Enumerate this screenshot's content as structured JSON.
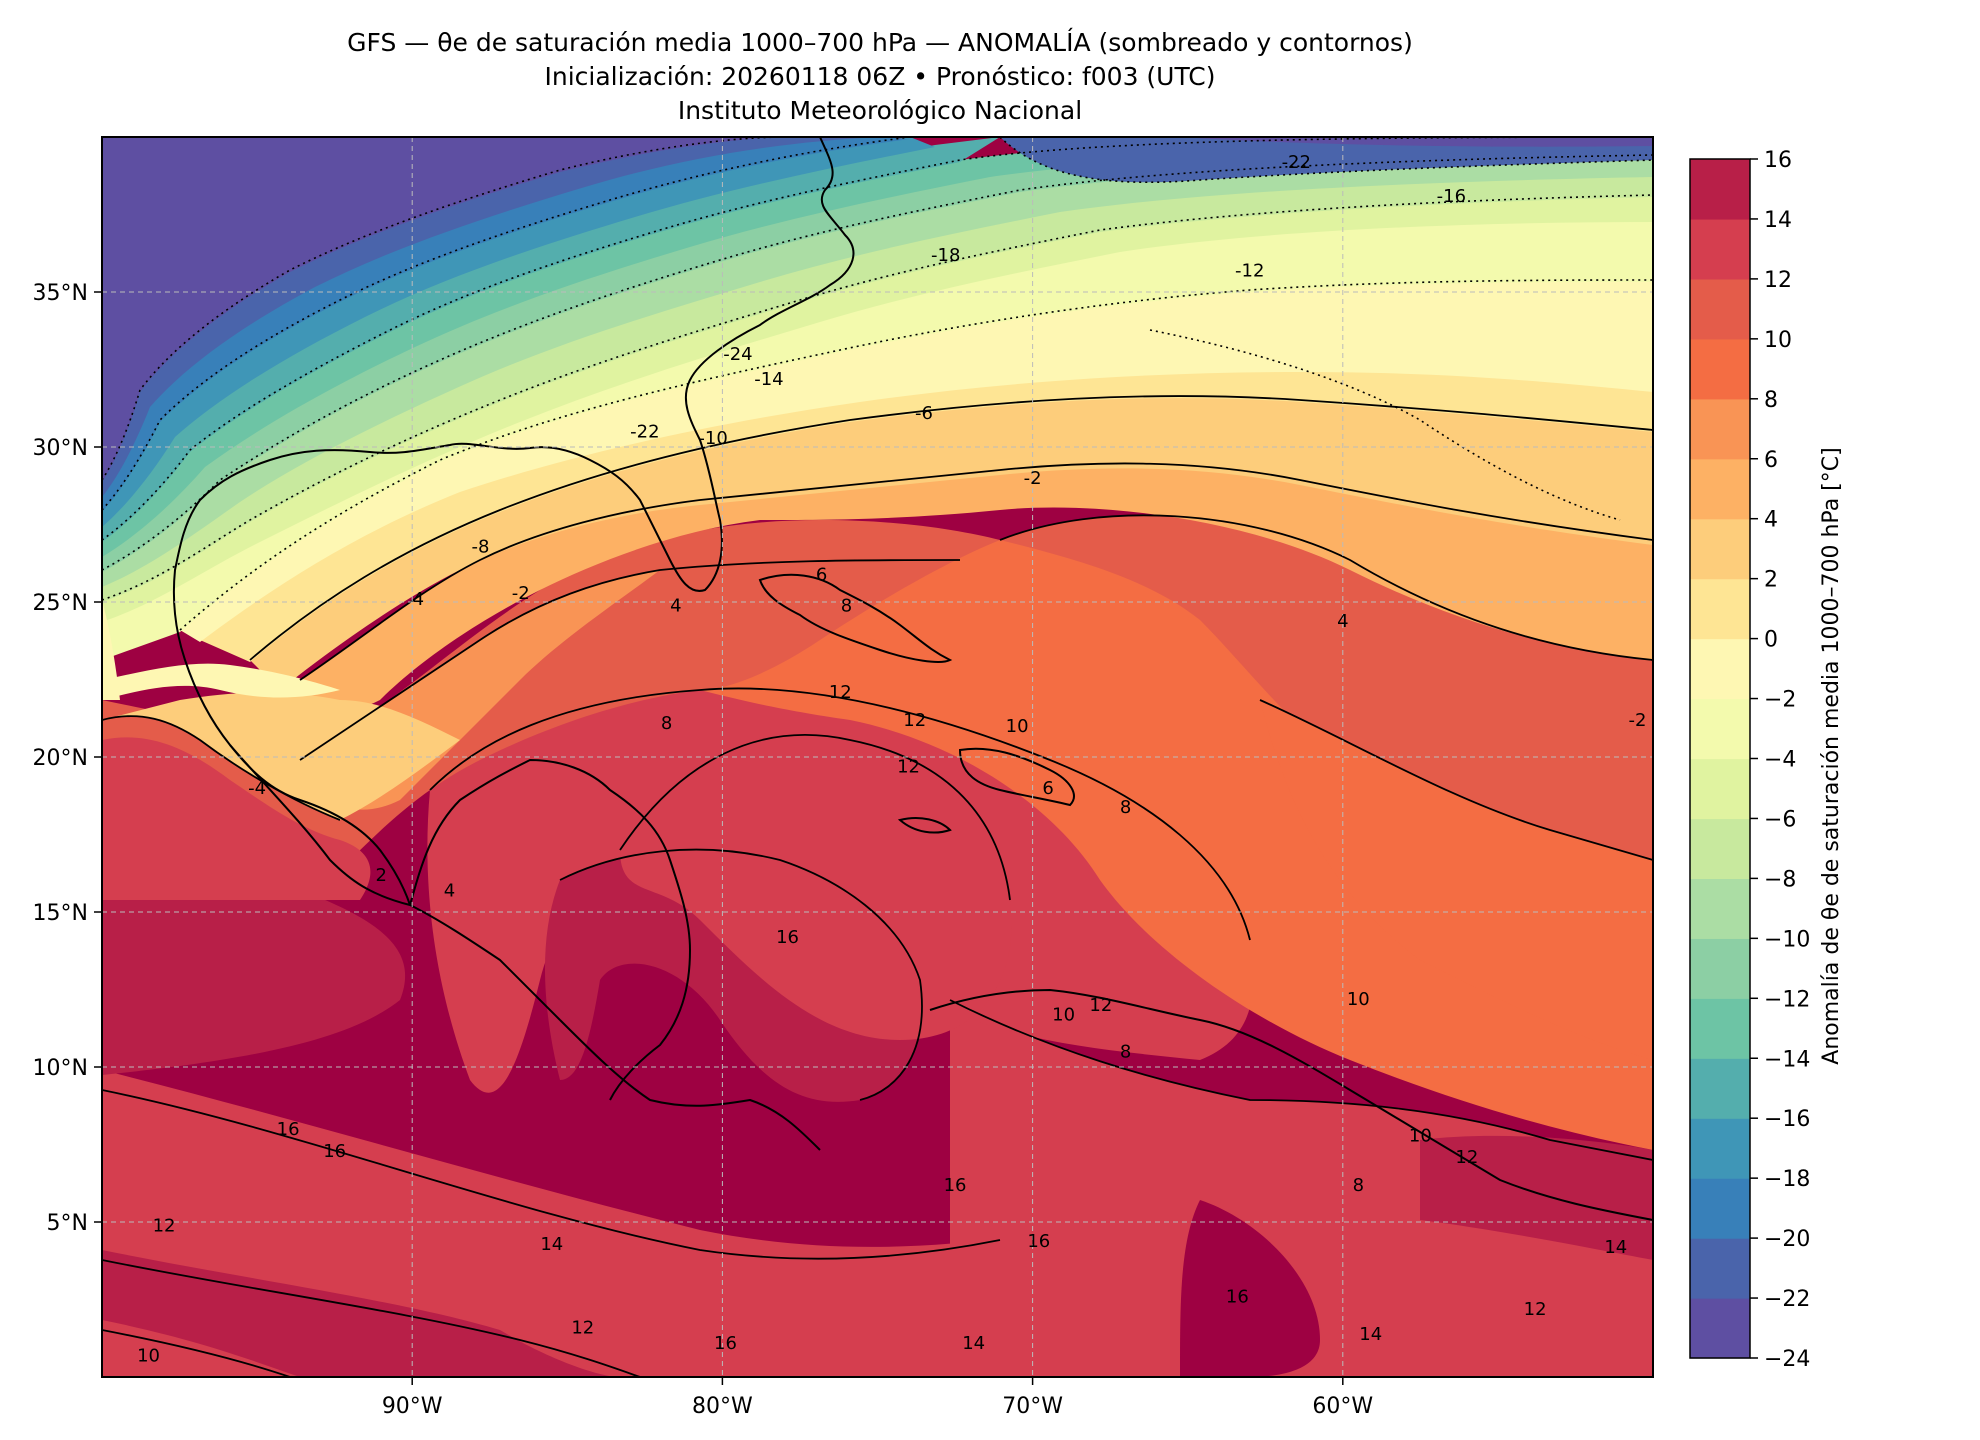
{
  "title": {
    "line1": "GFS — θe de saturación media 1000–700 hPa — ANOMALÍA (sombreado y contornos)",
    "line2": "Inicialización: 20260118 06Z   •   Pronóstico: f003 (UTC)",
    "line3": "Instituto Meteorológico Nacional"
  },
  "chart_data": {
    "type": "heatmap",
    "x_tick_labels": [
      "90°W",
      "80°W",
      "70°W",
      "60°W"
    ],
    "x_tick_values": [
      -90,
      -80,
      -70,
      -60
    ],
    "y_tick_labels": [
      "35°N",
      "30°N",
      "25°N",
      "20°N",
      "15°N",
      "10°N",
      "5°N"
    ],
    "y_tick_values": [
      35,
      30,
      25,
      20,
      15,
      10,
      5
    ],
    "xlim": [
      -100,
      -50
    ],
    "ylim": [
      0,
      40
    ],
    "grid": true,
    "colorbar": {
      "label": "Anomalía de θe de saturación media 1000–700 hPa [°C]",
      "ticks": [
        "16",
        "14",
        "12",
        "10",
        "8",
        "6",
        "4",
        "2",
        "0",
        "−2",
        "−4",
        "−6",
        "−8",
        "−10",
        "−12",
        "−14",
        "−16",
        "−18",
        "−20",
        "−22",
        "−24"
      ],
      "range": [
        -24,
        16
      ],
      "colors": [
        "#5e4fa2",
        "#4a64ab",
        "#3880b9",
        "#3f96b7",
        "#54aead",
        "#6dc4a5",
        "#8ccfa4",
        "#abdda4",
        "#c8e99e",
        "#e0f3a0",
        "#f3faad",
        "#fef7b3",
        "#fee594",
        "#fdcd7b",
        "#fdb164",
        "#f99455",
        "#f46d43",
        "#e45c4a",
        "#d53e4f",
        "#b81f48",
        "#9e0142"
      ]
    },
    "contour_labels": [
      {
        "text": "-22",
        "lon": -61.5,
        "lat": 39.0
      },
      {
        "text": "-16",
        "lon": -56.5,
        "lat": 37.9
      },
      {
        "text": "-18",
        "lon": -72.8,
        "lat": 36.0
      },
      {
        "text": "-12",
        "lon": -63.0,
        "lat": 35.5
      },
      {
        "text": "-24",
        "lon": -79.5,
        "lat": 32.8
      },
      {
        "text": "-14",
        "lon": -78.5,
        "lat": 32.0
      },
      {
        "text": "-6",
        "lon": -73.5,
        "lat": 30.9
      },
      {
        "text": "-10",
        "lon": -80.3,
        "lat": 30.1
      },
      {
        "text": "-22",
        "lon": -82.5,
        "lat": 30.3
      },
      {
        "text": "-2",
        "lon": -70.0,
        "lat": 28.8
      },
      {
        "text": "-8",
        "lon": -87.8,
        "lat": 26.6
      },
      {
        "text": "4",
        "lon": -89.8,
        "lat": 24.9
      },
      {
        "text": "-2",
        "lon": -86.5,
        "lat": 25.1
      },
      {
        "text": "4",
        "lon": -81.5,
        "lat": 24.7
      },
      {
        "text": "6",
        "lon": -76.8,
        "lat": 25.7
      },
      {
        "text": "8",
        "lon": -76.0,
        "lat": 24.7
      },
      {
        "text": "4",
        "lon": -60.0,
        "lat": 24.2
      },
      {
        "text": "12",
        "lon": -76.2,
        "lat": 21.9
      },
      {
        "text": "12",
        "lon": -73.8,
        "lat": 21.0
      },
      {
        "text": "8",
        "lon": -81.8,
        "lat": 20.9
      },
      {
        "text": "10",
        "lon": -70.5,
        "lat": 20.8
      },
      {
        "text": "-2",
        "lon": -50.5,
        "lat": 21.0
      },
      {
        "text": "12",
        "lon": -74.0,
        "lat": 19.5
      },
      {
        "text": "6",
        "lon": -69.5,
        "lat": 18.8
      },
      {
        "text": "8",
        "lon": -67.0,
        "lat": 18.2
      },
      {
        "text": "-4",
        "lon": -95.0,
        "lat": 18.8
      },
      {
        "text": "2",
        "lon": -91.0,
        "lat": 16.0
      },
      {
        "text": "4",
        "lon": -88.8,
        "lat": 15.5
      },
      {
        "text": "16",
        "lon": -77.9,
        "lat": 14.0
      },
      {
        "text": "10",
        "lon": -69.0,
        "lat": 11.5
      },
      {
        "text": "12",
        "lon": -67.8,
        "lat": 11.8
      },
      {
        "text": "10",
        "lon": -59.5,
        "lat": 12.0
      },
      {
        "text": "8",
        "lon": -67.0,
        "lat": 10.3
      },
      {
        "text": "10",
        "lon": -57.5,
        "lat": 7.6
      },
      {
        "text": "12",
        "lon": -56.0,
        "lat": 6.9
      },
      {
        "text": "16",
        "lon": -94.0,
        "lat": 7.8
      },
      {
        "text": "16",
        "lon": -92.5,
        "lat": 7.1
      },
      {
        "text": "8",
        "lon": -59.5,
        "lat": 6.0
      },
      {
        "text": "12",
        "lon": -98.0,
        "lat": 4.7
      },
      {
        "text": "14",
        "lon": -85.5,
        "lat": 4.1
      },
      {
        "text": "16",
        "lon": -69.8,
        "lat": 4.2
      },
      {
        "text": "16",
        "lon": -72.5,
        "lat": 6.0
      },
      {
        "text": "16",
        "lon": -63.4,
        "lat": 2.4
      },
      {
        "text": "12",
        "lon": -84.5,
        "lat": 1.4
      },
      {
        "text": "16",
        "lon": -79.9,
        "lat": 0.9
      },
      {
        "text": "14",
        "lon": -71.9,
        "lat": 0.9
      },
      {
        "text": "14",
        "lon": -59.1,
        "lat": 1.2
      },
      {
        "text": "10",
        "lon": -98.5,
        "lat": 0.5
      },
      {
        "text": "14",
        "lon": -51.2,
        "lat": 4.0
      },
      {
        "text": "12",
        "lon": -53.8,
        "lat": 2.0
      }
    ]
  }
}
